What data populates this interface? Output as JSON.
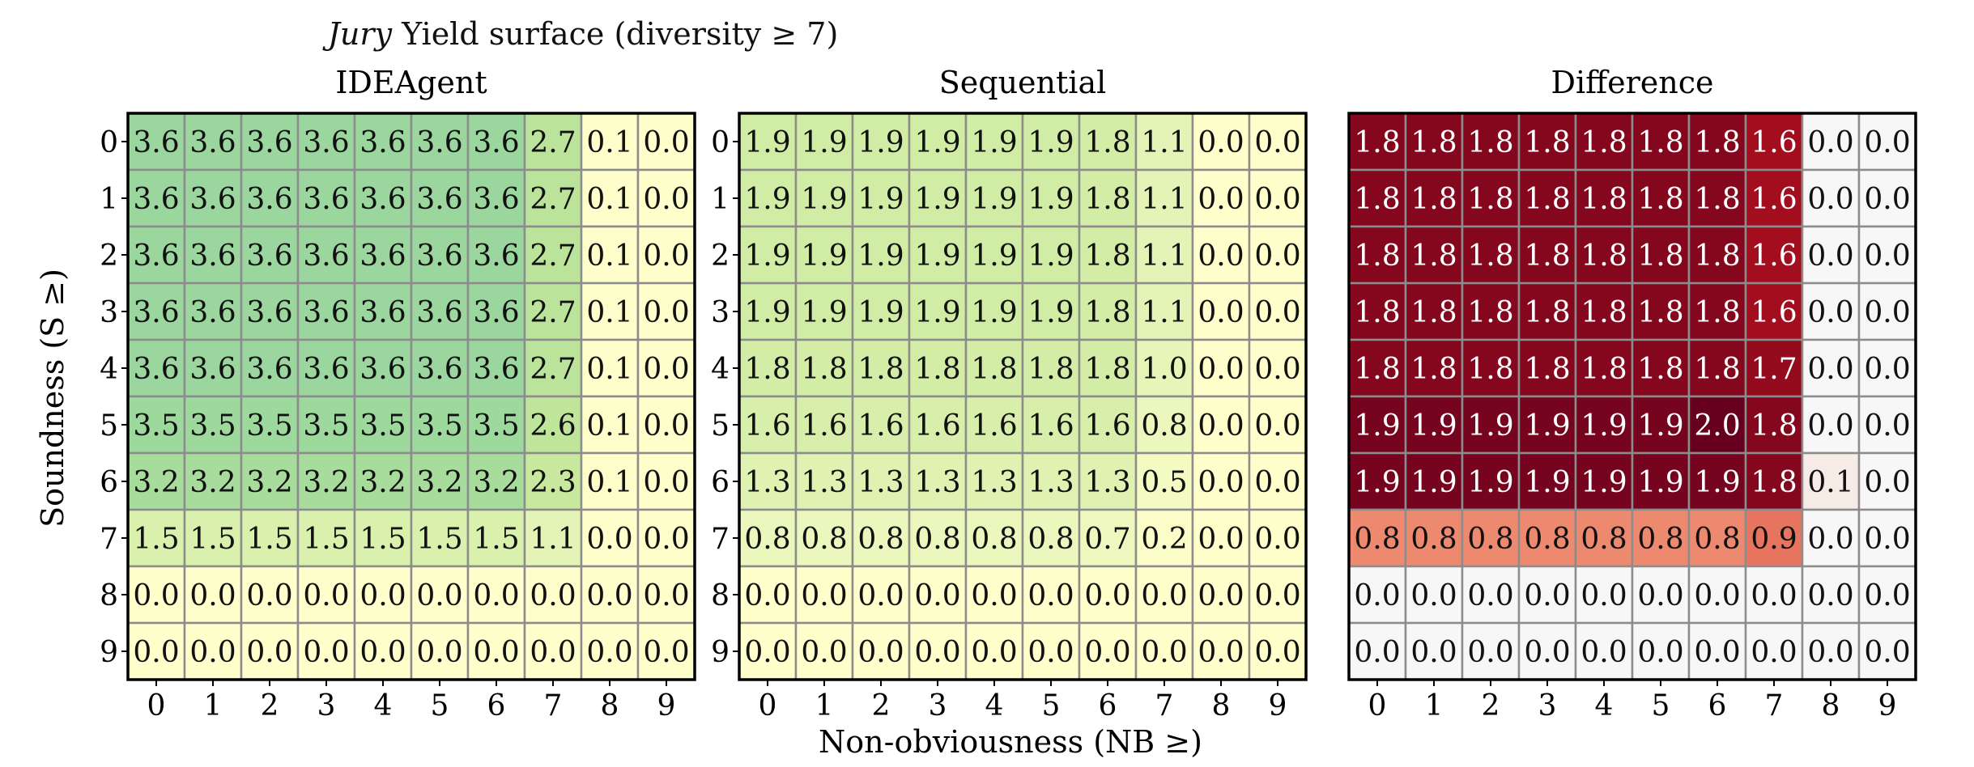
{
  "figure": {
    "title_italic": "Jury",
    "title_rest": " Yield surface (diversity ≥ 7)",
    "xlabel": "Non-obviousness (NB ≥)",
    "ylabel": "Soundness (S ≥)"
  },
  "colors": {
    "ylgn_light": "#ffffcc",
    "ylgn_mid": "#c2e699",
    "ylgn_dark": "#66c2a4",
    "reds_zero": "#f7f7f7",
    "reds_mid": "#f4a582",
    "reds_dark": "#67001f",
    "gridline": "#8c8c8c"
  },
  "chart_data": [
    {
      "type": "heatmap",
      "title": "IDEAgent",
      "colormap": "YlGn",
      "vmin": 0.0,
      "vmax": 5.0,
      "x_ticks": [
        "0",
        "1",
        "2",
        "3",
        "4",
        "5",
        "6",
        "7",
        "8",
        "9"
      ],
      "y_ticks": [
        "0",
        "1",
        "2",
        "3",
        "4",
        "5",
        "6",
        "7",
        "8",
        "9"
      ],
      "values": [
        [
          3.6,
          3.6,
          3.6,
          3.6,
          3.6,
          3.6,
          3.6,
          2.7,
          0.1,
          0.0
        ],
        [
          3.6,
          3.6,
          3.6,
          3.6,
          3.6,
          3.6,
          3.6,
          2.7,
          0.1,
          0.0
        ],
        [
          3.6,
          3.6,
          3.6,
          3.6,
          3.6,
          3.6,
          3.6,
          2.7,
          0.1,
          0.0
        ],
        [
          3.6,
          3.6,
          3.6,
          3.6,
          3.6,
          3.6,
          3.6,
          2.7,
          0.1,
          0.0
        ],
        [
          3.6,
          3.6,
          3.6,
          3.6,
          3.6,
          3.6,
          3.6,
          2.7,
          0.1,
          0.0
        ],
        [
          3.5,
          3.5,
          3.5,
          3.5,
          3.5,
          3.5,
          3.5,
          2.6,
          0.1,
          0.0
        ],
        [
          3.2,
          3.2,
          3.2,
          3.2,
          3.2,
          3.2,
          3.2,
          2.3,
          0.1,
          0.0
        ],
        [
          1.5,
          1.5,
          1.5,
          1.5,
          1.5,
          1.5,
          1.5,
          1.1,
          0.0,
          0.0
        ],
        [
          0.0,
          0.0,
          0.0,
          0.0,
          0.0,
          0.0,
          0.0,
          0.0,
          0.0,
          0.0
        ],
        [
          0.0,
          0.0,
          0.0,
          0.0,
          0.0,
          0.0,
          0.0,
          0.0,
          0.0,
          0.0
        ]
      ]
    },
    {
      "type": "heatmap",
      "title": "Sequential",
      "colormap": "YlGn",
      "vmin": 0.0,
      "vmax": 5.0,
      "x_ticks": [
        "0",
        "1",
        "2",
        "3",
        "4",
        "5",
        "6",
        "7",
        "8",
        "9"
      ],
      "y_ticks": [
        "0",
        "1",
        "2",
        "3",
        "4",
        "5",
        "6",
        "7",
        "8",
        "9"
      ],
      "values": [
        [
          1.9,
          1.9,
          1.9,
          1.9,
          1.9,
          1.9,
          1.8,
          1.1,
          0.0,
          0.0
        ],
        [
          1.9,
          1.9,
          1.9,
          1.9,
          1.9,
          1.9,
          1.8,
          1.1,
          0.0,
          0.0
        ],
        [
          1.9,
          1.9,
          1.9,
          1.9,
          1.9,
          1.9,
          1.8,
          1.1,
          0.0,
          0.0
        ],
        [
          1.9,
          1.9,
          1.9,
          1.9,
          1.9,
          1.9,
          1.8,
          1.1,
          0.0,
          0.0
        ],
        [
          1.8,
          1.8,
          1.8,
          1.8,
          1.8,
          1.8,
          1.8,
          1.0,
          0.0,
          0.0
        ],
        [
          1.6,
          1.6,
          1.6,
          1.6,
          1.6,
          1.6,
          1.6,
          0.8,
          0.0,
          0.0
        ],
        [
          1.3,
          1.3,
          1.3,
          1.3,
          1.3,
          1.3,
          1.3,
          0.5,
          0.0,
          0.0
        ],
        [
          0.8,
          0.8,
          0.8,
          0.8,
          0.8,
          0.8,
          0.7,
          0.2,
          0.0,
          0.0
        ],
        [
          0.0,
          0.0,
          0.0,
          0.0,
          0.0,
          0.0,
          0.0,
          0.0,
          0.0,
          0.0
        ],
        [
          0.0,
          0.0,
          0.0,
          0.0,
          0.0,
          0.0,
          0.0,
          0.0,
          0.0,
          0.0
        ]
      ]
    },
    {
      "type": "heatmap",
      "title": "Difference",
      "colormap": "Reds",
      "vmin": 0.0,
      "vmax": 2.0,
      "x_ticks": [
        "0",
        "1",
        "2",
        "3",
        "4",
        "5",
        "6",
        "7",
        "8",
        "9"
      ],
      "y_ticks": [],
      "values": [
        [
          1.8,
          1.8,
          1.8,
          1.8,
          1.8,
          1.8,
          1.8,
          1.6,
          0.0,
          0.0
        ],
        [
          1.8,
          1.8,
          1.8,
          1.8,
          1.8,
          1.8,
          1.8,
          1.6,
          0.0,
          0.0
        ],
        [
          1.8,
          1.8,
          1.8,
          1.8,
          1.8,
          1.8,
          1.8,
          1.6,
          0.0,
          0.0
        ],
        [
          1.8,
          1.8,
          1.8,
          1.8,
          1.8,
          1.8,
          1.8,
          1.6,
          0.0,
          0.0
        ],
        [
          1.8,
          1.8,
          1.8,
          1.8,
          1.8,
          1.8,
          1.8,
          1.7,
          0.0,
          0.0
        ],
        [
          1.9,
          1.9,
          1.9,
          1.9,
          1.9,
          1.9,
          2.0,
          1.8,
          0.0,
          0.0
        ],
        [
          1.9,
          1.9,
          1.9,
          1.9,
          1.9,
          1.9,
          1.9,
          1.8,
          0.1,
          0.0
        ],
        [
          0.8,
          0.8,
          0.8,
          0.8,
          0.8,
          0.8,
          0.8,
          0.9,
          0.0,
          0.0
        ],
        [
          0.0,
          0.0,
          0.0,
          0.0,
          0.0,
          0.0,
          0.0,
          0.0,
          0.0,
          0.0
        ],
        [
          0.0,
          0.0,
          0.0,
          0.0,
          0.0,
          0.0,
          0.0,
          0.0,
          0.0,
          0.0
        ]
      ]
    }
  ]
}
